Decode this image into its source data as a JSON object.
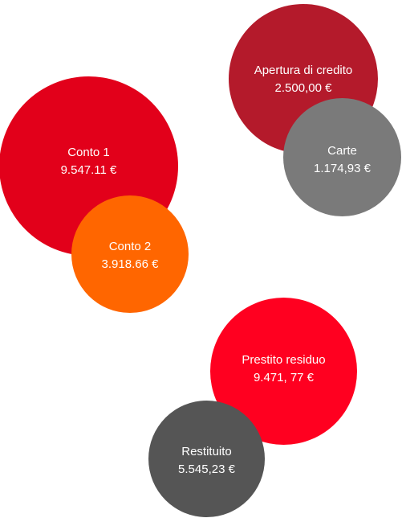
{
  "bubbles": {
    "credit_line": {
      "label": "Apertura di credito",
      "amount": "2.500,00 €",
      "color": "#B41A2B"
    },
    "cards": {
      "label": "Carte",
      "amount": "1.174,93 €",
      "color": "#7A7A7A"
    },
    "account1": {
      "label": "Conto 1",
      "amount": "9.547.11 €",
      "color": "#E2001A"
    },
    "account2": {
      "label": "Conto 2",
      "amount": "3.918.66 €",
      "color": "#FF6600"
    },
    "loan": {
      "label": "Prestito residuo",
      "amount": "9.471, 77 €",
      "color": "#FF0020"
    },
    "repaid": {
      "label": "Restituito",
      "amount": "5.545,23 €",
      "color": "#555555"
    }
  }
}
